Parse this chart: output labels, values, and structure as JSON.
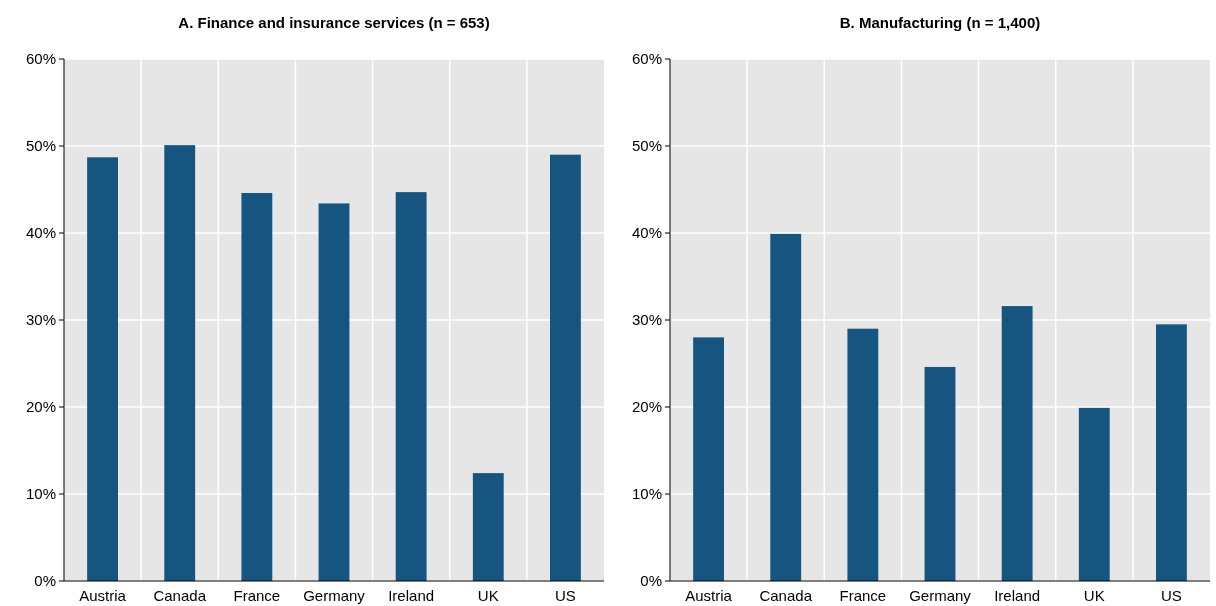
{
  "chart_data": [
    {
      "type": "bar",
      "title": "A. Finance and insurance services (n = 653)",
      "categories": [
        "Austria",
        "Canada",
        "France",
        "Germany",
        "Ireland",
        "UK",
        "US"
      ],
      "values": [
        48.7,
        50.1,
        44.6,
        43.4,
        44.7,
        12.4,
        49.0
      ],
      "color": "#15557f",
      "ylim": [
        0,
        60
      ],
      "yticks": [
        {
          "value": 0,
          "label": "0%"
        },
        {
          "value": 10,
          "label": "10%"
        },
        {
          "value": 20,
          "label": "20%"
        },
        {
          "value": 30,
          "label": "30%"
        },
        {
          "value": 40,
          "label": "40%"
        },
        {
          "value": 50,
          "label": "50%"
        },
        {
          "value": 60,
          "label": "60%"
        }
      ],
      "grid": true
    },
    {
      "type": "bar",
      "title": "B. Manufacturing (n =  1,400)",
      "categories": [
        "Austria",
        "Canada",
        "France",
        "Germany",
        "Ireland",
        "UK",
        "US"
      ],
      "values": [
        28.0,
        39.9,
        29.0,
        24.6,
        31.6,
        19.9,
        29.5
      ],
      "color": "#15557f",
      "ylim": [
        0,
        60
      ],
      "yticks": [
        {
          "value": 0,
          "label": "0%"
        },
        {
          "value": 10,
          "label": "10%"
        },
        {
          "value": 20,
          "label": "20%"
        },
        {
          "value": 30,
          "label": "30%"
        },
        {
          "value": 40,
          "label": "40%"
        },
        {
          "value": 50,
          "label": "50%"
        },
        {
          "value": 60,
          "label": "60%"
        }
      ],
      "grid": true
    }
  ]
}
